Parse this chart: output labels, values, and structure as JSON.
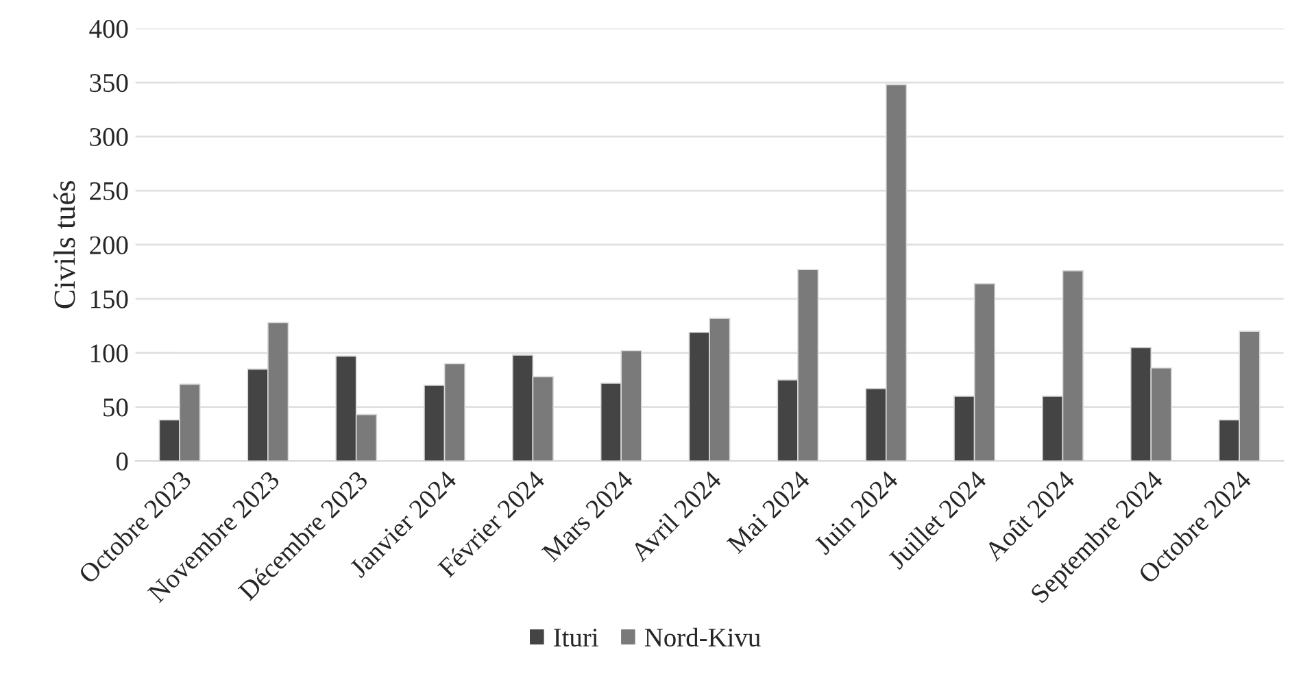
{
  "chart_data": {
    "type": "bar",
    "ylabel": "Civils tués",
    "categories": [
      "Octobre 2023",
      "Novembre 2023",
      "Décembre 2023",
      "Janvier 2024",
      "Février 2024",
      "Mars 2024",
      "Avril 2024",
      "Mai 2024",
      "Juin 2024",
      "Juillet 2024",
      "Août 2024",
      "Septembre 2024",
      "Octobre 2024"
    ],
    "series": [
      {
        "name": "Ituri",
        "color": "#444444",
        "values": [
          38,
          85,
          97,
          70,
          98,
          72,
          119,
          75,
          67,
          60,
          60,
          105,
          38
        ]
      },
      {
        "name": "Nord-Kivu",
        "color": "#7a7a7a",
        "values": [
          71,
          128,
          43,
          90,
          78,
          102,
          132,
          177,
          348,
          164,
          176,
          86,
          120
        ]
      }
    ],
    "ylim": [
      0,
      400
    ],
    "yticks": [
      0,
      50,
      100,
      150,
      200,
      250,
      300,
      350,
      400
    ],
    "grid": "y",
    "legend": "bottom"
  }
}
